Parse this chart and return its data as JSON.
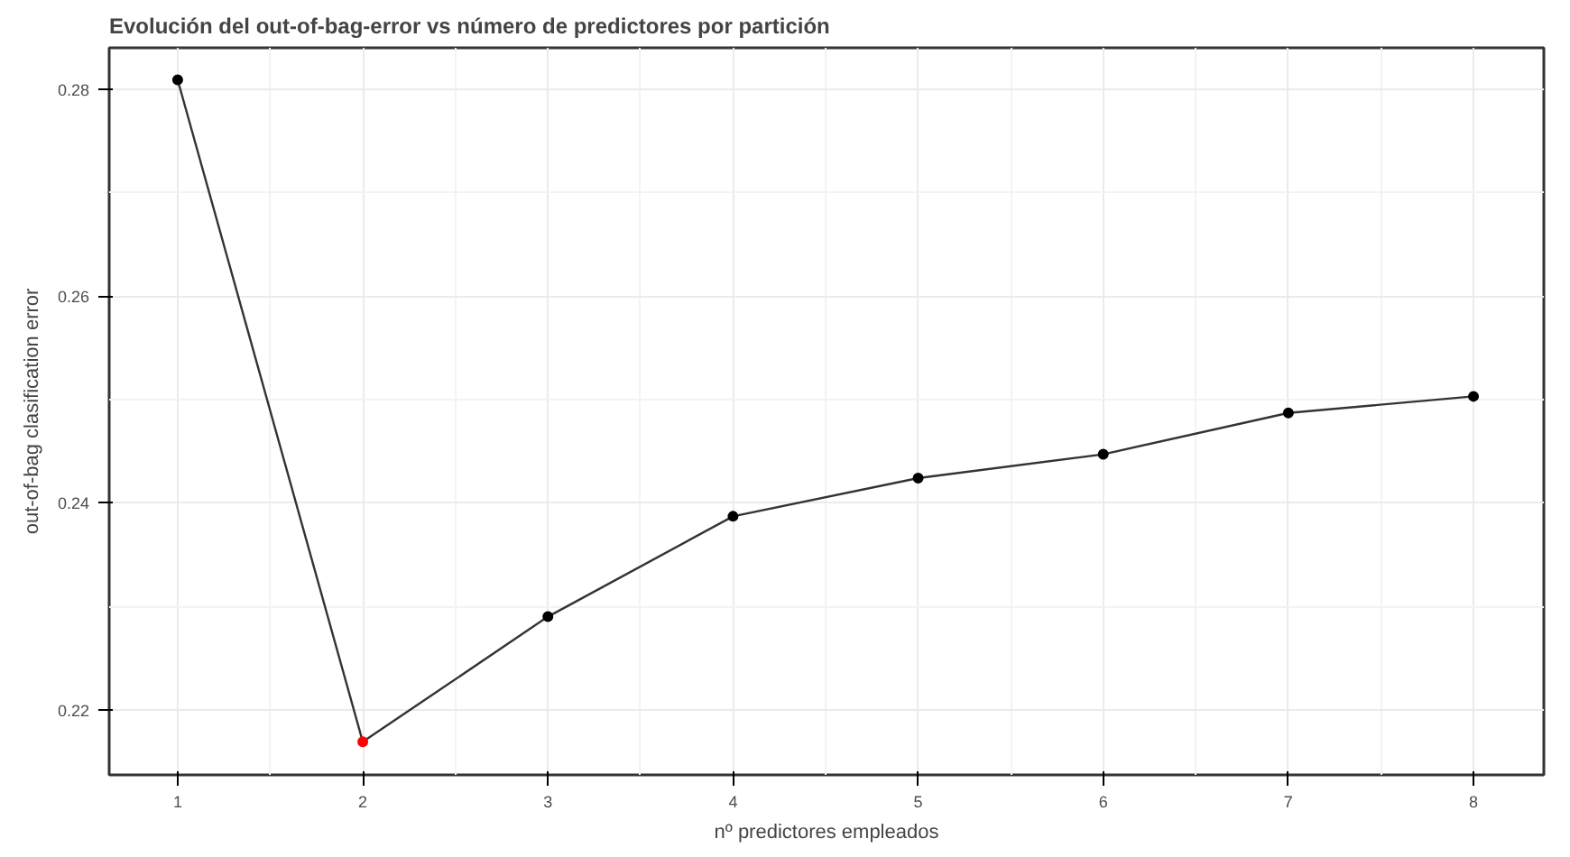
{
  "chart_data": {
    "type": "line",
    "title": "Evolución del out-of-bag-error vs número de predictores por partición",
    "xlabel": "nº predictores empleados",
    "ylabel": "out-of-bag clasification error",
    "x": [
      1,
      2,
      3,
      4,
      5,
      6,
      7,
      8
    ],
    "series": [
      {
        "color": "#333333",
        "colors": [
          "#000000",
          "#ff0000",
          "#000000",
          "#000000",
          "#000000",
          "#000000",
          "#000000",
          "#000000"
        ],
        "values": [
          0.2809,
          0.2169,
          0.229,
          0.2387,
          0.2424,
          0.2447,
          0.2487,
          0.2503
        ]
      }
    ],
    "xlim": [
      0.63,
      8.38
    ],
    "ylim": [
      0.2137,
      0.284
    ],
    "xticks": [
      1,
      2,
      3,
      4,
      5,
      6,
      7,
      8
    ],
    "yticks": [
      0.22,
      0.24,
      0.26,
      0.28
    ],
    "grid": true,
    "marker": "circle",
    "line_style": "solid"
  }
}
